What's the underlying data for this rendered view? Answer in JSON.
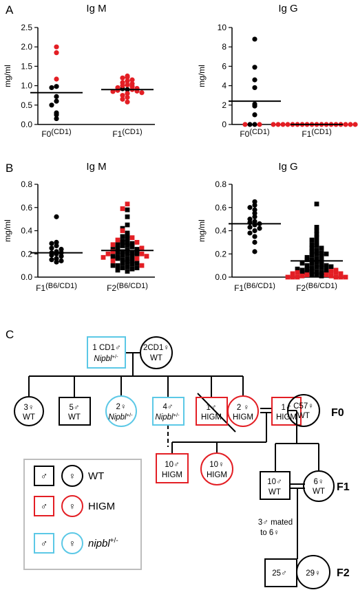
{
  "colors": {
    "black": "#000000",
    "red": "#e31e24",
    "cyan": "#5bc8e6",
    "legend_border": "#bdbdbd"
  },
  "panels": {
    "A": "A",
    "B": "B",
    "C": "C"
  },
  "units": "mg/ml",
  "chart_data": [
    {
      "id": "a_igm",
      "type": "scatter",
      "title": "Ig M",
      "ylabel": "mg/ml",
      "ylim": [
        0,
        2.5
      ],
      "yticks": [
        "0.0",
        "0.5",
        "1.0",
        "1.5",
        "2.0",
        "2.5"
      ],
      "groups": [
        {
          "label_main": "F0",
          "label_sup": "(CD1)",
          "median": 0.82,
          "black": [
            0.98,
            0.95,
            0.72,
            0.6,
            0.5,
            0.3,
            0.25,
            0.15
          ],
          "red": [
            2.0,
            1.85,
            1.17
          ]
        },
        {
          "label_main": "F1",
          "label_sup": "(CD1)",
          "median": 0.9,
          "black": [
            0.9,
            0.92
          ],
          "red": [
            1.25,
            1.22,
            1.2,
            1.15,
            1.12,
            1.08,
            1.05,
            1.02,
            1.0,
            0.98,
            0.95,
            0.93,
            0.9,
            0.88,
            0.86,
            0.85,
            0.82,
            0.8,
            0.75,
            0.7,
            0.65,
            0.58
          ]
        }
      ]
    },
    {
      "id": "a_igg",
      "type": "scatter",
      "title": "Ig G",
      "ylabel": "mg/ml",
      "ylim": [
        0,
        10
      ],
      "yticks": [
        "0",
        "2",
        "4",
        "6",
        "8",
        "10"
      ],
      "groups": [
        {
          "label_main": "F0",
          "label_sup": "(CD1)",
          "median": 2.4,
          "black": [
            8.8,
            5.9,
            4.6,
            3.8,
            2.1,
            1.9,
            1.0,
            0.0,
            0.0
          ],
          "red": [
            0.0,
            0.0
          ]
        },
        {
          "label_main": "F1",
          "label_sup": "(CD1)",
          "median": 0.0,
          "black": [],
          "red": [
            0,
            0,
            0,
            0,
            0,
            0,
            0,
            0,
            0,
            0,
            0,
            0,
            0,
            0,
            0,
            0,
            0,
            0
          ]
        }
      ]
    },
    {
      "id": "b_igm",
      "type": "scatter",
      "title": "Ig M",
      "ylabel": "mg/ml",
      "ylim": [
        0,
        0.8
      ],
      "yticks": [
        "0.0",
        "0.2",
        "0.4",
        "0.6",
        "0.8"
      ],
      "groups": [
        {
          "label_main": "F1",
          "label_sup": "(B6/CD1)",
          "median": 0.21,
          "marker": "circle",
          "black": [
            0.52,
            0.3,
            0.29,
            0.27,
            0.25,
            0.24,
            0.22,
            0.21,
            0.21,
            0.2,
            0.19,
            0.18,
            0.16,
            0.15,
            0.14,
            0.13
          ],
          "red": []
        },
        {
          "label_main": "F2",
          "label_sup": "(B6/CD1)",
          "median": 0.23,
          "marker": "square",
          "black": [
            0.58,
            0.52,
            0.45,
            0.42,
            0.38,
            0.36,
            0.35,
            0.33,
            0.31,
            0.3,
            0.3,
            0.29,
            0.28,
            0.27,
            0.27,
            0.26,
            0.25,
            0.24,
            0.23,
            0.22,
            0.21,
            0.21,
            0.2,
            0.19,
            0.18,
            0.17,
            0.16,
            0.15,
            0.14,
            0.13,
            0.12,
            0.11,
            0.1,
            0.09,
            0.08,
            0.07,
            0.06,
            0.05,
            0.2,
            0.22,
            0.24,
            0.18,
            0.16,
            0.12,
            0.1,
            0.08
          ],
          "red": [
            0.63,
            0.59,
            0.4,
            0.34,
            0.32,
            0.3,
            0.28,
            0.25,
            0.22,
            0.2,
            0.2,
            0.18,
            0.17,
            0.16,
            0.14,
            0.1
          ]
        }
      ]
    },
    {
      "id": "b_igg",
      "type": "scatter",
      "title": "Ig G",
      "ylabel": "mg/ml",
      "ylim": [
        0,
        0.8
      ],
      "yticks": [
        "0.0",
        "0.2",
        "0.4",
        "0.6",
        "0.8"
      ],
      "groups": [
        {
          "label_main": "F1",
          "label_sup": "(B6/CD1)",
          "median": 0.46,
          "marker": "circle",
          "black": [
            0.65,
            0.62,
            0.6,
            0.58,
            0.55,
            0.52,
            0.5,
            0.48,
            0.47,
            0.46,
            0.45,
            0.43,
            0.42,
            0.4,
            0.38,
            0.35,
            0.3,
            0.22
          ],
          "red": []
        },
        {
          "label_main": "F2",
          "label_sup": "(B6/CD1)",
          "median": 0.14,
          "marker": "square",
          "black": [
            0.63,
            0.43,
            0.4,
            0.37,
            0.34,
            0.32,
            0.3,
            0.28,
            0.27,
            0.25,
            0.23,
            0.22,
            0.21,
            0.2,
            0.19,
            0.18,
            0.17,
            0.16,
            0.15,
            0.14,
            0.13,
            0.12,
            0.11,
            0.1,
            0.1,
            0.09,
            0.08,
            0.08,
            0.07,
            0.06,
            0.06,
            0.05,
            0.05,
            0.04,
            0.04,
            0.03,
            0.03,
            0.02,
            0.02,
            0.01,
            0.25,
            0.2,
            0.15,
            0.12,
            0.09,
            0.07
          ],
          "red": [
            0.06,
            0.05,
            0.04,
            0.04,
            0.03,
            0.03,
            0.02,
            0.02,
            0.01,
            0.01,
            0.0,
            0.0,
            0.0,
            0.0,
            0.0,
            0.0
          ]
        }
      ]
    }
  ],
  "pedigree": {
    "nodes": {
      "cd1_male": [
        "1 CD1♂",
        "Nipbl",
        "+/-"
      ],
      "cd1_female": [
        "2CD1♀",
        "WT"
      ],
      "n3": [
        "3♀",
        "WT"
      ],
      "n5": [
        "5♂",
        "WT"
      ],
      "n2n": [
        "2♀",
        "Nipbl",
        "+/-"
      ],
      "n4n": [
        "4♂",
        "Nipbl",
        "+/-"
      ],
      "n1h_a": [
        "1♂",
        "HIGM"
      ],
      "n2h": [
        "2 ♀",
        "HIGM"
      ],
      "n1h_b": [
        "1♂",
        "HIGM"
      ],
      "c57": [
        "C57♀",
        "WT"
      ],
      "n10m": [
        "10♂",
        "HIGM"
      ],
      "n10f": [
        "10♀",
        "HIGM"
      ],
      "n10wt": [
        "10♂",
        "WT"
      ],
      "n6wt": [
        "6♀",
        "WT"
      ],
      "n25": [
        "25♂"
      ],
      "n29": [
        "29♀"
      ]
    },
    "gen": {
      "f0": "F0",
      "f1": "F1",
      "f2": "F2"
    },
    "mated": [
      "3♂ mated",
      "to 6♀"
    ]
  },
  "legend": [
    {
      "male": "♂",
      "female": "♀",
      "label": "WT",
      "color": "black"
    },
    {
      "male": "♂",
      "female": "♀",
      "label": "HIGM",
      "color": "red"
    },
    {
      "male": "♂",
      "female": "♀",
      "label": "nipbl",
      "sup": "+/-",
      "color": "cyan"
    }
  ]
}
